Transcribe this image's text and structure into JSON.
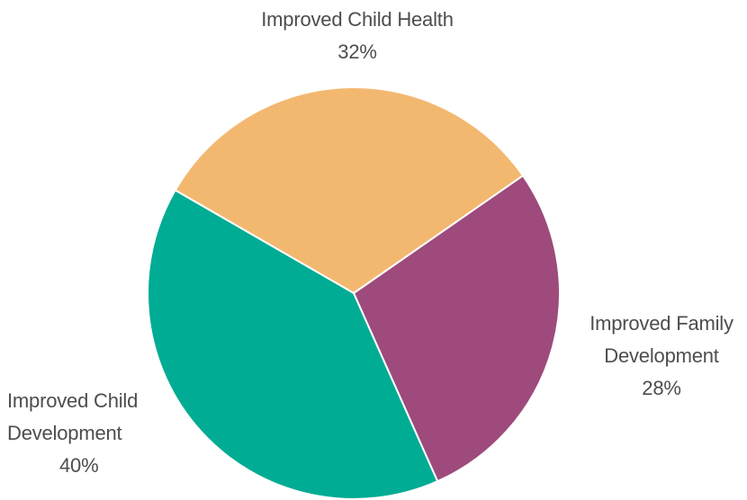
{
  "chart_data": {
    "type": "pie",
    "slices": [
      {
        "label_lines": [
          "Improved Child Health"
        ],
        "value": 32,
        "value_text": "32%",
        "color": "#f3b870"
      },
      {
        "label_lines": [
          "Improved Family",
          "Development"
        ],
        "value": 28,
        "value_text": "28%",
        "color": "#9e4a7c"
      },
      {
        "label_lines": [
          "Improved Child",
          "Development"
        ],
        "value": 40,
        "value_text": "40%",
        "color": "#00ac93"
      }
    ]
  }
}
